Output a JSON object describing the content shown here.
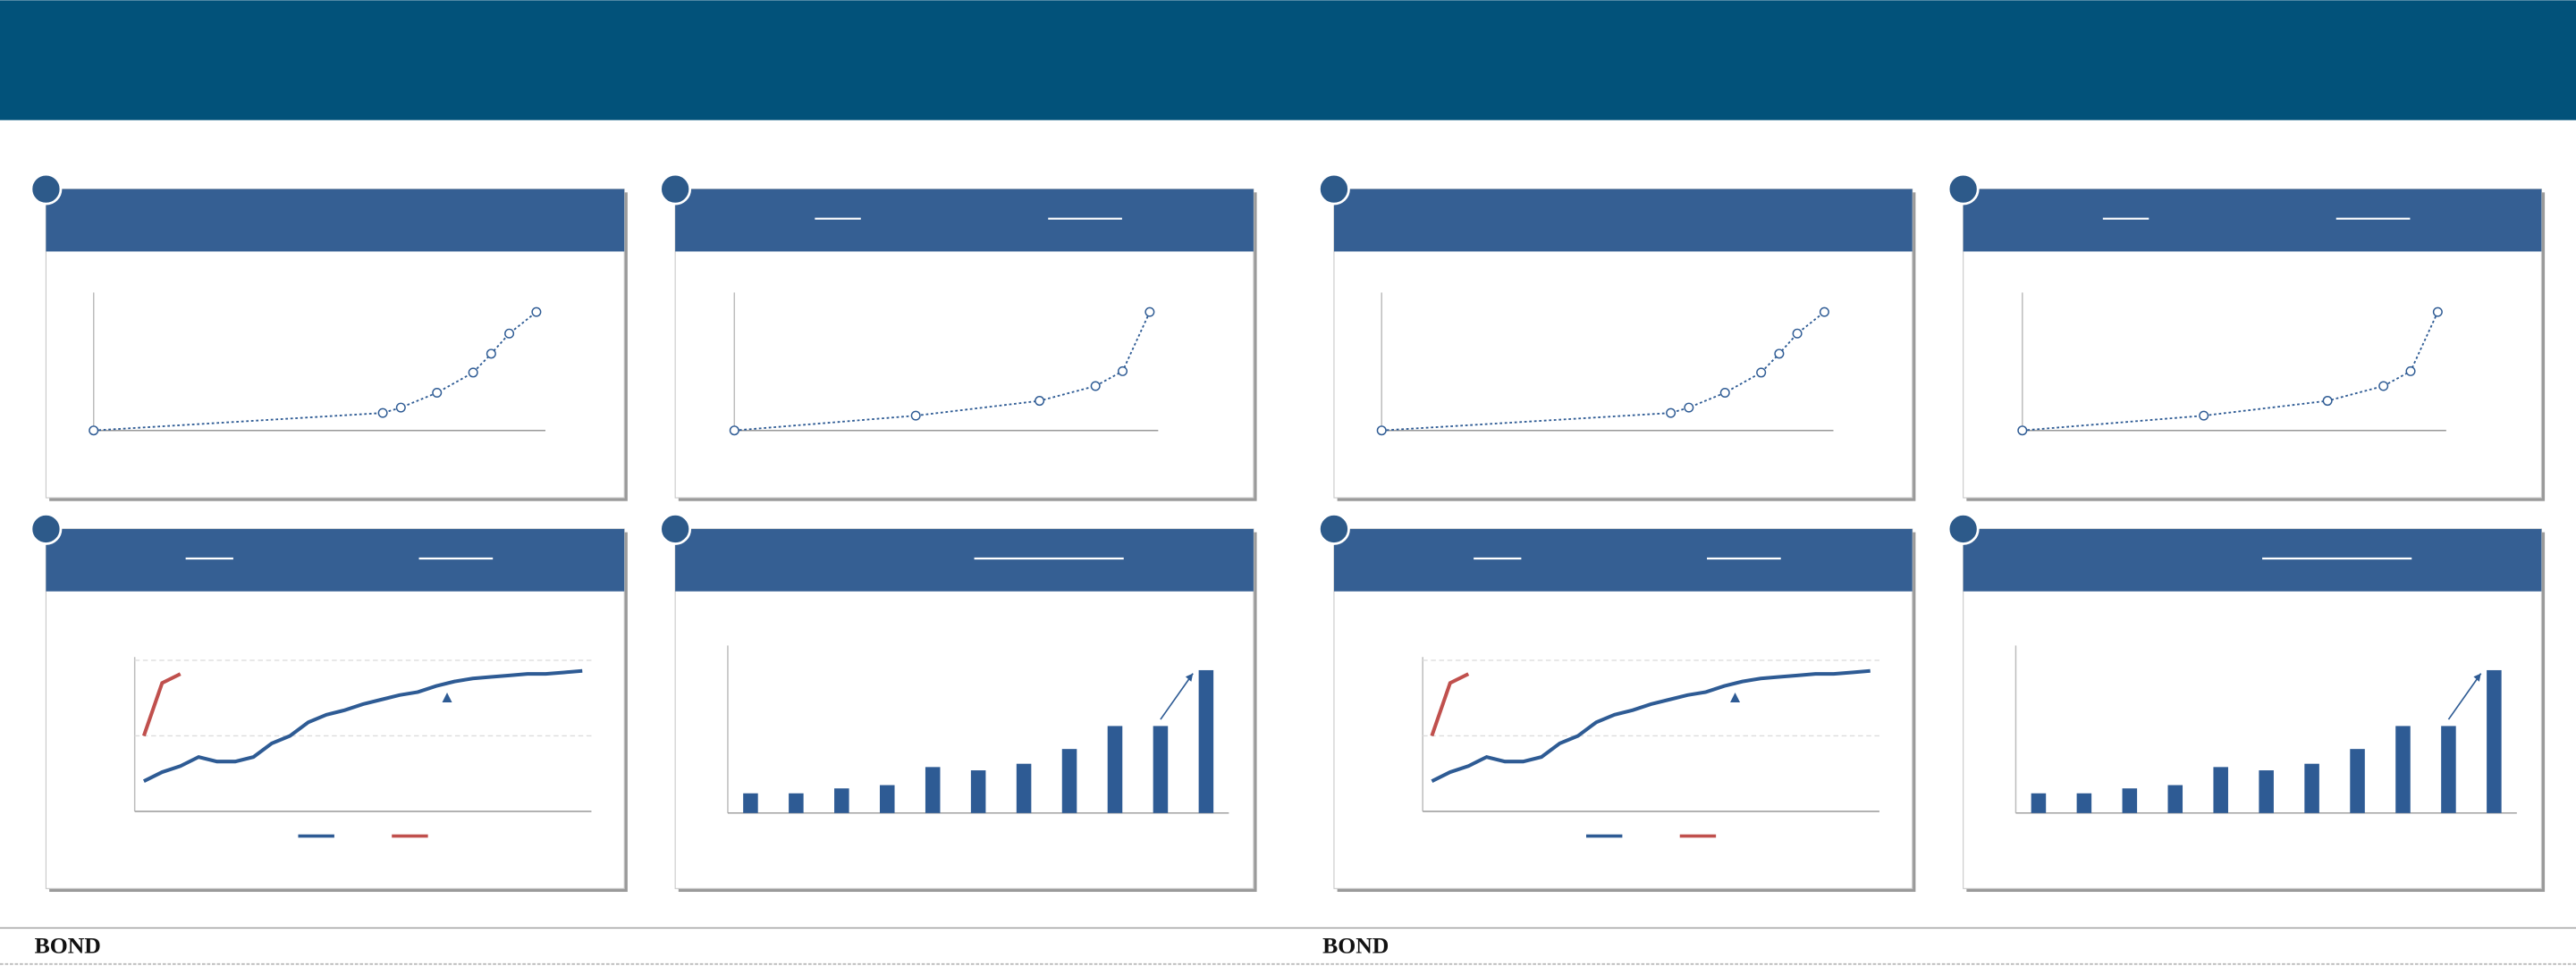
{
  "chart_data": [
    {
      "type": "line",
      "x": [
        0,
        16,
        17,
        19,
        21,
        22,
        23,
        24.5
      ],
      "xlim": [
        0,
        25
      ],
      "ylim": [
        0,
        100
      ],
      "line_style": "dotted",
      "markers": true,
      "series": [
        {
          "color": "#2e5b94",
          "values": [
            0,
            13,
            17,
            28,
            43,
            57,
            72,
            88
          ]
        }
      ]
    },
    {
      "type": "line",
      "x": [
        0,
        10.7,
        18,
        21.3,
        22.9,
        24.5
      ],
      "xlim": [
        0,
        25
      ],
      "ylim": [
        0,
        100
      ],
      "line_style": "dotted",
      "markers": true,
      "series": [
        {
          "color": "#2e5b94",
          "values": [
            0,
            11,
            22,
            33,
            44,
            88
          ]
        }
      ]
    },
    {
      "type": "line",
      "categories": [
        null,
        null,
        null,
        null,
        null,
        null,
        null,
        null,
        null,
        null,
        null,
        null,
        null,
        null,
        null,
        null,
        null,
        null,
        null,
        null,
        null,
        null,
        null,
        null,
        null
      ],
      "ylim": [
        0,
        100
      ],
      "yticks": [
        50,
        100
      ],
      "grid": true,
      "legend": "bottom",
      "series": [
        {
          "color": "#2e5b94",
          "values": [
            20,
            26,
            30,
            36,
            33,
            33,
            36,
            45,
            50,
            59,
            64,
            67,
            71,
            74,
            77,
            79,
            83,
            86,
            88,
            89,
            90,
            91,
            91,
            92,
            93
          ]
        },
        {
          "color": "#c0504d",
          "values": [
            50,
            85,
            91,
            null,
            null,
            null,
            null,
            null,
            null,
            null,
            null,
            null,
            null,
            null,
            null,
            null,
            null,
            null,
            null,
            null,
            null,
            null,
            null,
            null,
            null
          ]
        }
      ]
    },
    {
      "type": "bar",
      "categories": [
        null,
        null,
        null,
        null,
        null,
        null,
        null,
        null,
        null,
        null,
        null
      ],
      "ylim": [
        0,
        100
      ],
      "color": "#2e5b94",
      "values": [
        12,
        12,
        15,
        17,
        28,
        26,
        30,
        39,
        53,
        53,
        87
      ]
    },
    {
      "type": "line",
      "x": [
        0,
        16,
        17,
        19,
        21,
        22,
        23,
        24.5
      ],
      "xlim": [
        0,
        25
      ],
      "ylim": [
        0,
        100
      ],
      "line_style": "dotted",
      "markers": true,
      "series": [
        {
          "color": "#2e5b94",
          "values": [
            0,
            13,
            17,
            28,
            43,
            57,
            72,
            88
          ]
        }
      ]
    },
    {
      "type": "line",
      "x": [
        0,
        10.7,
        18,
        21.3,
        22.9,
        24.5
      ],
      "xlim": [
        0,
        25
      ],
      "ylim": [
        0,
        100
      ],
      "line_style": "dotted",
      "markers": true,
      "series": [
        {
          "color": "#2e5b94",
          "values": [
            0,
            11,
            22,
            33,
            44,
            88
          ]
        }
      ]
    },
    {
      "type": "line",
      "categories": [
        null,
        null,
        null,
        null,
        null,
        null,
        null,
        null,
        null,
        null,
        null,
        null,
        null,
        null,
        null,
        null,
        null,
        null,
        null,
        null,
        null,
        null,
        null,
        null,
        null
      ],
      "ylim": [
        0,
        100
      ],
      "yticks": [
        50,
        100
      ],
      "grid": true,
      "legend": "bottom",
      "series": [
        {
          "color": "#2e5b94",
          "values": [
            20,
            26,
            30,
            36,
            33,
            33,
            36,
            45,
            50,
            59,
            64,
            67,
            71,
            74,
            77,
            79,
            83,
            86,
            88,
            89,
            90,
            91,
            91,
            92,
            93
          ]
        },
        {
          "color": "#c0504d",
          "values": [
            50,
            85,
            91,
            null,
            null,
            null,
            null,
            null,
            null,
            null,
            null,
            null,
            null,
            null,
            null,
            null,
            null,
            null,
            null,
            null,
            null,
            null,
            null,
            null,
            null
          ]
        }
      ]
    },
    {
      "type": "bar",
      "categories": [
        null,
        null,
        null,
        null,
        null,
        null,
        null,
        null,
        null,
        null,
        null
      ],
      "ylim": [
        0,
        100
      ],
      "color": "#2e5b94",
      "values": [
        12,
        12,
        15,
        17,
        28,
        26,
        30,
        39,
        53,
        53,
        87
      ]
    }
  ],
  "footers": [
    "BOND",
    "BOND"
  ]
}
